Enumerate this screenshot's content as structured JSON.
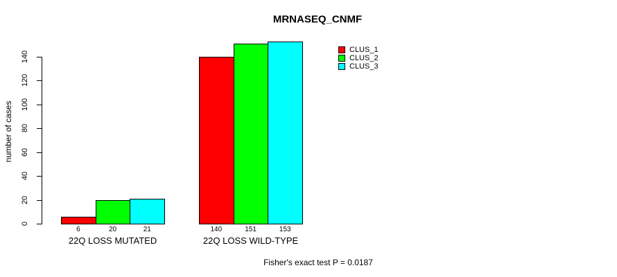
{
  "chart_data": {
    "type": "bar",
    "title": "MRNASEQ_CNMF",
    "xlabel": "",
    "ylabel": "number of cases",
    "categories": [
      "22Q LOSS MUTATED",
      "22Q LOSS WILD-TYPE"
    ],
    "series": [
      {
        "name": "CLUS_1",
        "color": "#ff0000",
        "values": [
          6,
          140
        ]
      },
      {
        "name": "CLUS_2",
        "color": "#00ff00",
        "values": [
          20,
          151
        ]
      },
      {
        "name": "CLUS_3",
        "color": "#00ffff",
        "values": [
          21,
          153
        ]
      }
    ],
    "yticks": [
      0,
      20,
      40,
      60,
      80,
      100,
      120,
      140
    ],
    "ylim": [
      0,
      155
    ],
    "grid": false,
    "legend_position": "top-right",
    "bar_value_labels_shown": true,
    "annotation": "Fisher's exact test P = 0.0187"
  }
}
